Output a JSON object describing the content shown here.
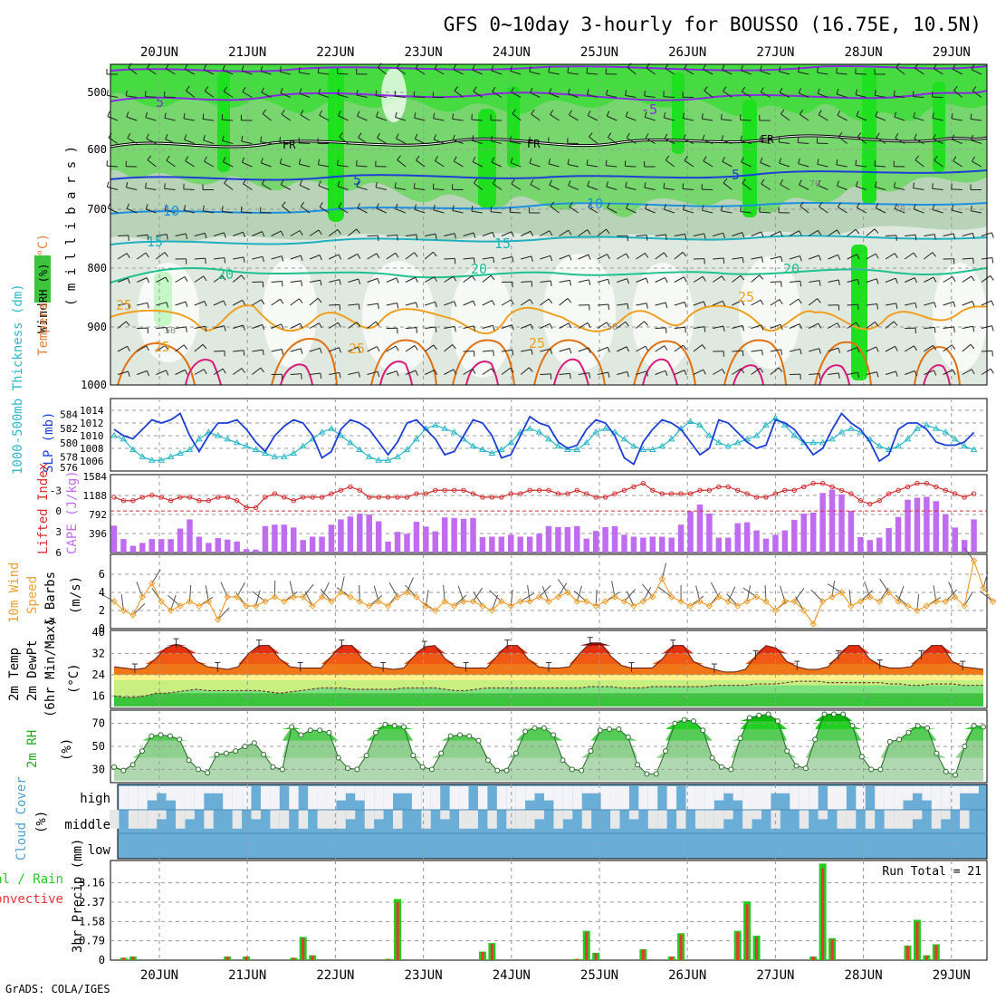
{
  "title": "GFS 0~10day 3-hourly for BOUSSO (16.75E, 10.5N)",
  "footer": "GrADS: COLA/IGES",
  "dates": [
    "20JUN",
    "21JUN",
    "22JUN",
    "23JUN",
    "24JUN",
    "25JUN",
    "26JUN",
    "27JUN",
    "28JUN",
    "29JUN"
  ],
  "colors": {
    "rh_light": "#dfe9df",
    "rh_mid": "#b8d3b8",
    "rh_green": "#77d66d",
    "rh_bright": "#1ee01e",
    "slp": "#1d3fd6",
    "thickness": "#2bb8c8",
    "lifted": "#d33030",
    "cape_bar": "#c06cf0",
    "wind10m": "#f0a030",
    "temp_dark": "#8c0a0a",
    "temp_red": "#e43010",
    "temp_orange": "#f07818",
    "temp_yellow": "#fff08a",
    "dew_green": "#3cc43c",
    "rh2m": "#8fd08f",
    "cloud": "#6aaed8",
    "cloud_gap": "#e8e8e8",
    "precip_total": "#22cc22",
    "precip_conv": "#ee3333"
  },
  "panels": {
    "upper_air": {
      "ylabel_wind": "Wind (m/s)",
      "ylabel_temp": "Temperature (°C)",
      "ylabel_rh": "RH (%)",
      "ylabel_units": "( m i l l i b a r s )",
      "levels": [
        "500",
        "600",
        "700",
        "800",
        "900",
        "1000"
      ],
      "contour_labels": [
        "5",
        "-5",
        "FR",
        "FR",
        "FR",
        "5",
        "5",
        "10",
        "10",
        "15",
        "15",
        "20",
        "20",
        "20",
        "25",
        "25",
        "25",
        "25",
        "25",
        "50",
        "50",
        "70",
        "70"
      ]
    },
    "slp_thickness": {
      "ylabel_thick": "1000-500mb Thickness (dm)",
      "ylabel_slp": "SLP (mb)",
      "left_ticks": [
        "584",
        "582",
        "580",
        "578",
        "576"
      ],
      "right_ticks": [
        "1014",
        "1012",
        "1010",
        "1008",
        "1006"
      ]
    },
    "cape_li": {
      "ylabel_li": "Lifted Index",
      "ylabel_cape": "CAPE (J/kg)",
      "left_ticks": [
        "-3",
        "0",
        "3",
        "6"
      ],
      "right_ticks": [
        "1584",
        "1188",
        "792",
        "396"
      ]
    },
    "wind10m": {
      "ylabel1": "10m Wind",
      "ylabel2": "Speed",
      "ylabel3": "& Barbs",
      "ylabel4": "(m/s)",
      "ticks": [
        "6",
        "4",
        "2",
        "0"
      ]
    },
    "temp2m": {
      "ylabel1": "2m Temp",
      "ylabel2": "2m DewPt",
      "ylabel3": "(6hr Min/Max)",
      "ylabel4": "(°C)",
      "ticks": [
        "40",
        "32",
        "24",
        "16"
      ]
    },
    "rh2m": {
      "ylabel1": "2m RH",
      "ylabel2": "(%)",
      "ticks": [
        "70",
        "50",
        "30"
      ]
    },
    "cloud": {
      "ylabel1": "Cloud Cover",
      "ylabel2": "(%)",
      "rows": [
        "high",
        "middle",
        "low"
      ]
    },
    "precip": {
      "ylabel_total": "Total / Rain",
      "ylabel_conv": "Convective",
      "ylabel_units": "3hr Precip (mm)",
      "ticks": [
        "3.16",
        "2.37",
        "1.58",
        "0.79",
        "0"
      ],
      "run_total": "Run Total = 21"
    }
  },
  "chart_data": [
    {
      "type": "line",
      "name": "SLP and 1000-500mb thickness",
      "x_step_hours": 3,
      "series": [
        {
          "name": "SLP (mb)",
          "ylim": [
            1005,
            1015
          ],
          "values": [
            1011,
            1010,
            1009.5,
            1011,
            1012.5,
            1012,
            1012.5,
            1013.5,
            1010,
            1007.5,
            1010,
            1012,
            1012,
            1012.5,
            1011,
            1009,
            1007.5,
            1010,
            1011.5,
            1012.5,
            1012,
            1010,
            1006.5,
            1007.5,
            1011,
            1012.5,
            1012,
            1011,
            1009,
            1007,
            1009,
            1012,
            1012.5,
            1011,
            1009.5,
            1007,
            1007.5,
            1010,
            1012.5,
            1012,
            1010,
            1006.5,
            1007,
            1010,
            1013,
            1012,
            1011.5,
            1009,
            1008,
            1008.5,
            1011,
            1012.5,
            1012,
            1010,
            1006.5,
            1005.5,
            1009,
            1011,
            1012.5,
            1012,
            1011,
            1009,
            1007,
            1008,
            1012.5,
            1012,
            1010.5,
            1009,
            1008,
            1008.5,
            1012.5,
            1012,
            1011,
            1009,
            1007,
            1008,
            1011,
            1013.5,
            1012,
            1011,
            1009,
            1006,
            1007,
            1011,
            1012,
            1012,
            1011,
            1009,
            1008.5,
            1008.5,
            1009,
            1010.5
          ]
        },
        {
          "name": "1000-500mb Thickness (dm)",
          "ylim": [
            576.5,
            585.5
          ],
          "values": [
            581,
            580.5,
            579,
            578,
            577.5,
            577.5,
            578,
            578.5,
            579,
            580.5,
            581.5,
            581,
            580.5,
            580,
            579.5,
            579,
            578.5,
            578,
            578,
            578.5,
            579.5,
            580.5,
            581.5,
            582,
            581,
            580,
            579,
            578,
            577.5,
            577.5,
            578,
            579,
            580.5,
            582,
            582.5,
            582,
            581.5,
            580.5,
            579.5,
            579,
            578.5,
            579,
            580,
            581.5,
            582,
            581.5,
            580.5,
            579.5,
            579,
            579,
            580,
            581.5,
            582,
            581.5,
            580.5,
            579.5,
            579,
            579,
            579.5,
            580.5,
            582,
            583,
            582.5,
            581,
            580,
            579.5,
            580,
            580.5,
            581,
            582.5,
            583.5,
            582.5,
            581,
            580,
            580,
            580,
            580.5,
            581.5,
            582,
            581.5,
            580.5,
            579.5,
            579,
            579.5,
            580.5,
            582,
            582.5,
            582,
            581.5,
            580.5,
            579.5,
            579
          ]
        }
      ]
    },
    {
      "type": "bar",
      "name": "CAPE and Lifted Index",
      "series": [
        {
          "name": "CAPE (J/kg)",
          "ylim": [
            0,
            1584
          ],
          "values": [
            560,
            280,
            140,
            200,
            280,
            280,
            280,
            500,
            690,
            330,
            200,
            300,
            270,
            230,
            70,
            60,
            550,
            580,
            580,
            520,
            260,
            330,
            330,
            580,
            690,
            750,
            810,
            790,
            650,
            230,
            430,
            390,
            640,
            540,
            440,
            730,
            720,
            700,
            720,
            320,
            330,
            330,
            370,
            330,
            330,
            390,
            550,
            530,
            530,
            550,
            290,
            450,
            530,
            550,
            370,
            330,
            310,
            330,
            330,
            310,
            580,
            860,
            1000,
            810,
            310,
            310,
            610,
            630,
            460,
            290,
            370,
            460,
            680,
            810,
            830,
            1240,
            1310,
            1210,
            870,
            320,
            260,
            310,
            510,
            740,
            1100,
            1140,
            1160,
            1070,
            800,
            520,
            260,
            690
          ]
        },
        {
          "name": "Lifted Index",
          "ylim": [
            6,
            -5
          ],
          "values": [
            -2,
            -1.5,
            -1.5,
            -2,
            -2.3,
            -2,
            -1.5,
            -2,
            -2,
            -1.5,
            -1.5,
            -2,
            -2,
            -1.5,
            -0.5,
            -0.5,
            -2,
            -2.5,
            -2,
            -1.5,
            -2,
            -2,
            -2,
            -2.5,
            -3,
            -3.5,
            -3,
            -2,
            -2,
            -2,
            -2,
            -2,
            -2.5,
            -2.5,
            -3,
            -3,
            -3,
            -3,
            -2.5,
            -2,
            -2,
            -2,
            -2.5,
            -2.5,
            -3,
            -3,
            -3,
            -2.5,
            -2.5,
            -3,
            -2.5,
            -2,
            -2,
            -2.5,
            -3,
            -3.5,
            -4,
            -3,
            -2.5,
            -2.5,
            -2.5,
            -2.5,
            -3,
            -3,
            -3.5,
            -3.5,
            -3,
            -2.5,
            -2,
            -2,
            -2.5,
            -3,
            -3,
            -3.5,
            -4,
            -4,
            -3.5,
            -3,
            -2.5,
            -1.5,
            -1,
            -1.5,
            -2.5,
            -3,
            -3.5,
            -4,
            -4,
            -3.5,
            -3,
            -2.5,
            -2,
            -2.5
          ]
        }
      ]
    },
    {
      "type": "line",
      "name": "10m wind speed",
      "ylim": [
        0,
        8
      ],
      "series": [
        {
          "name": "10m Wind Speed (m/s)",
          "values": [
            3,
            2,
            1.5,
            3.5,
            5,
            3,
            2,
            2.5,
            3,
            2.5,
            3,
            1,
            3.5,
            3.5,
            2.5,
            2.5,
            3,
            3.5,
            3,
            3.5,
            3.5,
            2.5,
            3.5,
            3,
            4,
            3.5,
            3,
            2.5,
            3,
            2.5,
            3.5,
            4,
            3.5,
            2.5,
            2,
            3,
            2.5,
            3,
            3,
            2.5,
            2,
            3,
            2.5,
            3,
            3,
            3.5,
            3,
            3.5,
            4,
            3,
            3,
            2.5,
            3,
            3.5,
            3,
            2.5,
            3,
            3.5,
            5.5,
            3.5,
            3,
            2.5,
            3,
            2.5,
            3.5,
            3,
            2.5,
            3,
            3.5,
            3,
            2,
            3,
            3,
            2,
            0.5,
            3,
            3.5,
            4,
            2.5,
            3,
            3.5,
            3,
            4,
            3,
            2.5,
            2,
            2.5,
            3,
            3,
            3.5,
            2.5,
            7.5,
            4.5,
            3,
            3.5,
            3,
            3,
            3.5
          ]
        }
      ]
    },
    {
      "type": "area",
      "name": "2m temperature and dewpoint",
      "ylim": [
        12,
        40
      ],
      "series": [
        {
          "name": "2m Temp (°C)",
          "values": [
            27,
            26.5,
            26,
            26.5,
            30,
            34,
            35.5,
            34,
            29,
            27,
            26.5,
            26,
            27,
            32,
            35,
            35,
            30,
            27,
            26.5,
            26.5,
            26.5,
            31,
            35,
            35,
            30,
            27,
            26.5,
            26,
            26.5,
            31,
            34.5,
            35,
            30,
            27,
            26.5,
            26.5,
            26.5,
            31,
            35,
            35,
            30,
            27,
            26.5,
            26.5,
            27,
            32,
            36,
            36,
            31,
            27.5,
            26.5,
            26.5,
            26.5,
            30,
            35,
            35,
            29,
            27,
            26,
            25,
            25,
            26,
            31,
            35,
            34,
            29,
            27,
            26,
            26,
            27,
            31,
            35,
            35,
            30,
            27.5,
            26.5,
            26.5,
            27,
            31,
            35,
            35,
            29,
            27,
            26.5,
            26
          ]
        },
        {
          "name": "2m DewPt (°C)",
          "values": [
            16,
            15.5,
            15.5,
            16,
            17,
            17,
            17.5,
            18,
            18.5,
            18,
            18,
            18,
            18,
            18,
            18,
            17.5,
            17,
            17.5,
            18,
            18.5,
            19,
            19,
            19,
            18.5,
            18.5,
            18.5,
            18.5,
            18.5,
            19,
            19,
            19,
            19,
            18.5,
            18,
            18,
            18.5,
            19,
            19,
            19,
            19,
            19,
            19,
            19,
            19,
            19,
            19,
            19.5,
            19.5,
            19.5,
            19,
            19,
            19,
            19.5,
            19.5,
            19.5,
            19.5,
            19.5,
            19.5,
            20,
            20,
            20,
            20,
            20.5,
            20.5,
            20.5,
            21,
            21.5,
            21.5,
            21.5,
            21,
            21,
            21,
            21,
            21,
            21,
            20.5,
            20.5,
            20,
            20,
            20.5,
            20.5,
            20.5,
            20,
            20,
            20
          ]
        }
      ]
    },
    {
      "type": "area",
      "name": "2m relative humidity",
      "ylim": [
        20,
        80
      ],
      "series": [
        {
          "name": "2m RH (%)",
          "values": [
            32,
            29,
            34,
            46,
            59,
            60,
            59,
            56,
            38,
            30,
            27,
            43,
            44,
            46,
            50,
            53,
            43,
            32,
            30,
            67,
            60,
            64,
            64,
            62,
            40,
            31,
            30,
            42,
            62,
            69,
            68,
            67,
            42,
            32,
            30,
            44,
            59,
            60,
            59,
            55,
            38,
            29,
            29,
            44,
            63,
            66,
            66,
            60,
            38,
            30,
            29,
            46,
            64,
            65,
            65,
            58,
            34,
            26,
            26,
            46,
            70,
            73,
            72,
            64,
            40,
            32,
            30,
            57,
            75,
            77,
            78,
            72,
            46,
            33,
            31,
            56,
            78,
            78,
            78,
            68,
            41,
            30,
            30,
            54,
            56,
            62,
            68,
            66,
            44,
            28,
            25,
            50,
            68,
            67
          ]
        }
      ]
    }
  ]
}
